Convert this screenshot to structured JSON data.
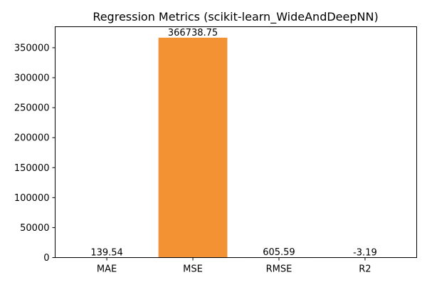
{
  "chart_data": {
    "type": "bar",
    "title": "Regression Metrics (scikit-learn_WideAndDeepNN)",
    "xlabel": "",
    "ylabel": "",
    "categories": [
      "MAE",
      "MSE",
      "RMSE",
      "R2"
    ],
    "values": [
      139.54,
      366738.75,
      605.59,
      -3.19
    ],
    "data_labels": [
      "139.54",
      "366738.75",
      "605.59",
      "-3.19"
    ],
    "ylim": [
      0,
      385000
    ],
    "yticks": [
      0,
      50000,
      100000,
      150000,
      200000,
      250000,
      300000,
      350000
    ],
    "grid": false,
    "bar_color": "#f39232"
  }
}
